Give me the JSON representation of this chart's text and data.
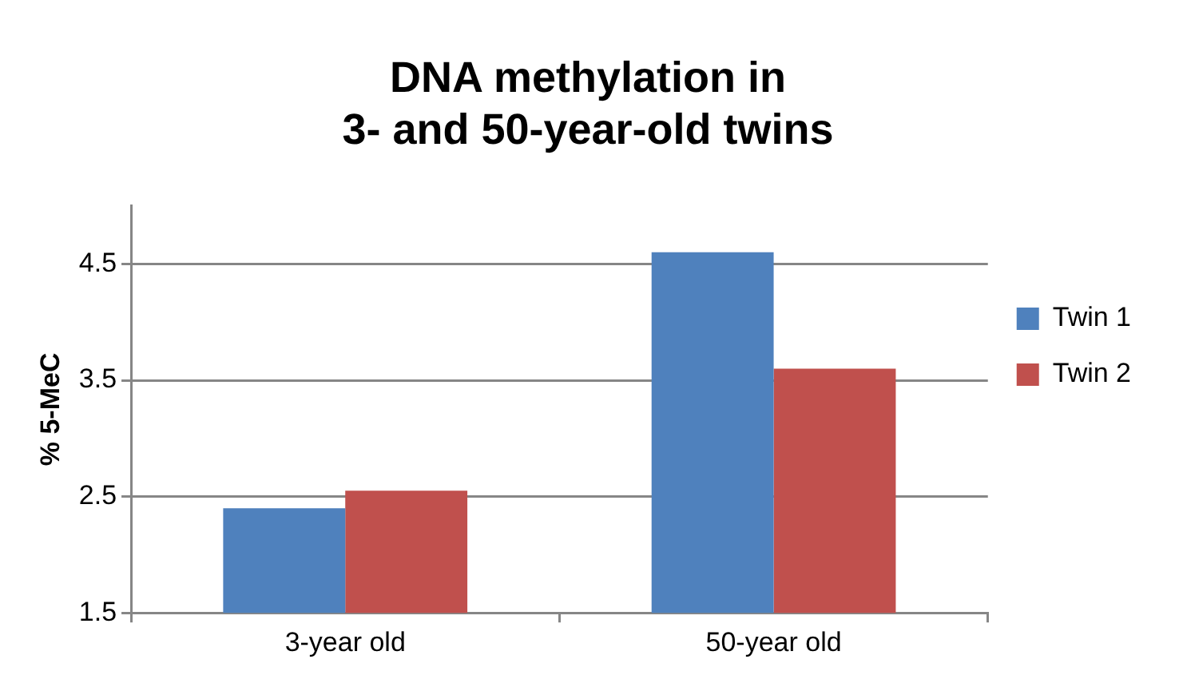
{
  "chart_data": {
    "type": "bar",
    "title": "DNA methylation in\n3- and 50-year-old twins",
    "ylabel": "% 5-MeC",
    "categories": [
      "3-year old",
      "50-year old"
    ],
    "series": [
      {
        "name": "Twin 1",
        "color": "#4f81bd",
        "values": [
          2.4,
          4.6
        ]
      },
      {
        "name": "Twin 2",
        "color": "#c0504d",
        "values": [
          2.55,
          3.6
        ]
      }
    ],
    "ylim": [
      1.5,
      5
    ],
    "yticks": [
      1.5,
      2.5,
      3.5,
      4.5
    ],
    "grid": "y",
    "legend": "right"
  }
}
